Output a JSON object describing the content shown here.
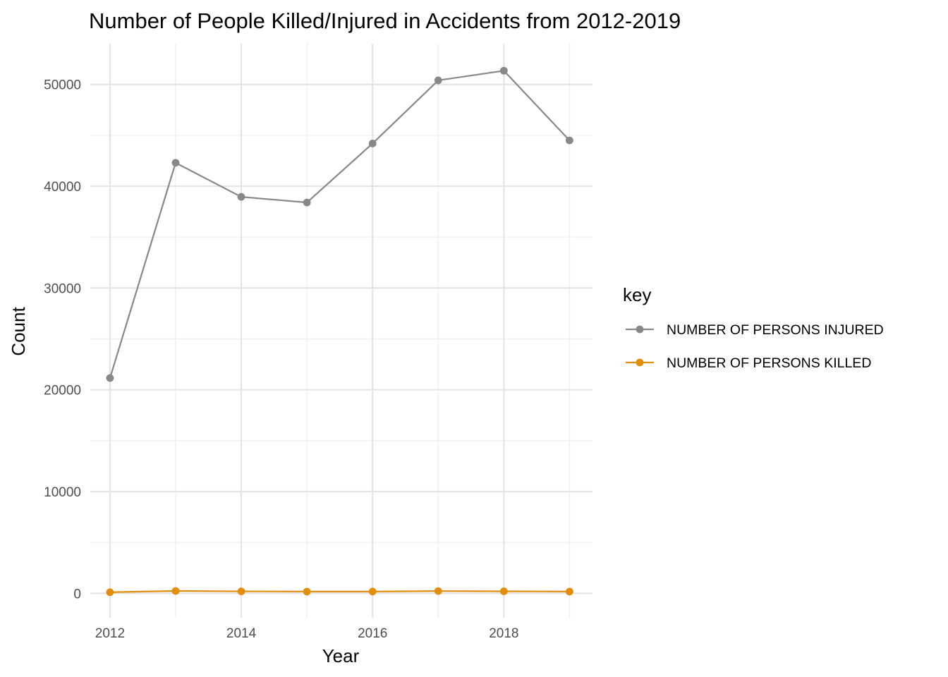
{
  "chart_data": {
    "type": "line",
    "title": "Number of People Killed/Injured in Accidents from 2012-2019",
    "xlabel": "Year",
    "ylabel": "Count",
    "x": [
      2012,
      2013,
      2014,
      2015,
      2016,
      2017,
      2018,
      2019
    ],
    "xlim": [
      2011.7,
      2019.35
    ],
    "ylim": [
      -2400,
      54000
    ],
    "x_ticks": [
      2012,
      2014,
      2016,
      2018
    ],
    "x_tick_labels": [
      "2012",
      "2014",
      "2016",
      "2018"
    ],
    "y_ticks": [
      0,
      10000,
      20000,
      30000,
      40000,
      50000
    ],
    "y_tick_labels": [
      "0",
      "10000",
      "20000",
      "30000",
      "40000",
      "50000"
    ],
    "grid": true,
    "legend": {
      "title": "key",
      "position": "right"
    },
    "series": [
      {
        "name": "NUMBER OF PERSONS INJURED",
        "color": "#888888",
        "values": [
          21150,
          42300,
          38950,
          38400,
          44200,
          50400,
          51350,
          44500
        ]
      },
      {
        "name": "NUMBER OF PERSONS KILLED",
        "color": "#E08E0B",
        "values": [
          110,
          235,
          195,
          170,
          175,
          225,
          200,
          170
        ]
      }
    ]
  }
}
